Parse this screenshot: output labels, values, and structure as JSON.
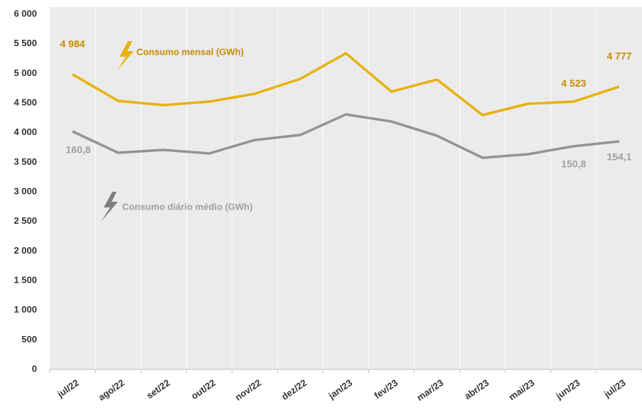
{
  "chart_data": {
    "type": "line",
    "categories": [
      "jul/22",
      "ago/22",
      "set/22",
      "out/22",
      "nov/22",
      "dez/22",
      "jan/23",
      "fev/23",
      "mar/23",
      "abr/23",
      "mai/23",
      "jun/23",
      "jul/23"
    ],
    "series": [
      {
        "name": "Consumo mensal (GWh)",
        "color": "#e8b10e",
        "values": [
          4984,
          4536,
          4464,
          4524,
          4656,
          4908,
          5340,
          4692,
          4896,
          4296,
          4488,
          4523,
          4777
        ],
        "value_labels": [
          "4 984",
          null,
          null,
          null,
          null,
          null,
          null,
          null,
          null,
          null,
          null,
          "4 523",
          "4 777"
        ]
      },
      {
        "name": "Consumo diário médio (GWh)",
        "color": "#939393",
        "axis": "y2",
        "values": [
          160.8,
          146.4,
          148.3,
          145.9,
          155,
          158.4,
          172.3,
          167.5,
          157.9,
          143,
          145.4,
          150.8,
          154.1
        ],
        "value_labels": [
          "160,8",
          null,
          null,
          null,
          null,
          null,
          null,
          null,
          null,
          null,
          null,
          "150,8",
          "154,1"
        ]
      }
    ],
    "ylim": [
      0,
      6000
    ],
    "yticks": [
      0,
      500,
      {
        "value": 1000,
        "label": "1 000"
      },
      {
        "value": 1500,
        "label": "1 500"
      },
      {
        "value": 2000,
        "label": "2 000"
      },
      {
        "value": 2500,
        "label": "2 500"
      },
      {
        "value": 3000,
        "label": "3 000"
      },
      {
        "value": 3500,
        "label": "3 500"
      },
      {
        "value": 4000,
        "label": "4 000"
      },
      {
        "value": 4500,
        "label": "4 500"
      },
      {
        "value": 5000,
        "label": "5 000"
      },
      {
        "value": 5500,
        "label": "5 500"
      },
      {
        "value": 6000,
        "label": "6 000"
      }
    ],
    "y2lim": [
      0,
      240
    ]
  }
}
